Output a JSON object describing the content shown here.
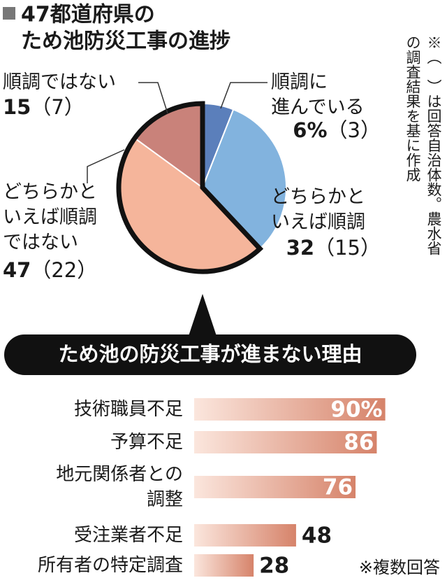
{
  "chart_data": [
    {
      "type": "pie",
      "title": [
        "47都道府県の",
        "ため池防災工事の進捗"
      ],
      "categories": [
        "順調に\n進んでいる",
        "どちらかと\nいえば順調",
        "どちらかと\nいえば順調\nではない",
        "順調ではない"
      ],
      "values": [
        6,
        32,
        47,
        15
      ],
      "value_labels": [
        "6%",
        "32",
        "47",
        "15"
      ],
      "count_labels": [
        "（3）",
        "（15）",
        "（22）",
        "（7）"
      ],
      "colors": [
        "#5b7fbb",
        "#82b3de",
        "#f5b59b",
        "#c9827a"
      ]
    },
    {
      "type": "barh",
      "title": "ため池の防災工事が進まない理由",
      "categories": [
        "技術職員不足",
        "予算不足",
        "地元関係者との\n調整",
        "受注業者不足",
        "所有者の特定調査"
      ],
      "values": [
        90,
        86,
        76,
        48,
        28
      ],
      "value_labels": [
        "90%",
        "86",
        "76",
        "48",
        "28"
      ],
      "xlim": [
        0,
        100
      ],
      "note": "※複数回答"
    }
  ],
  "note": "※（　）は回答自治体数。農水省\nの調査結果を基に作成"
}
